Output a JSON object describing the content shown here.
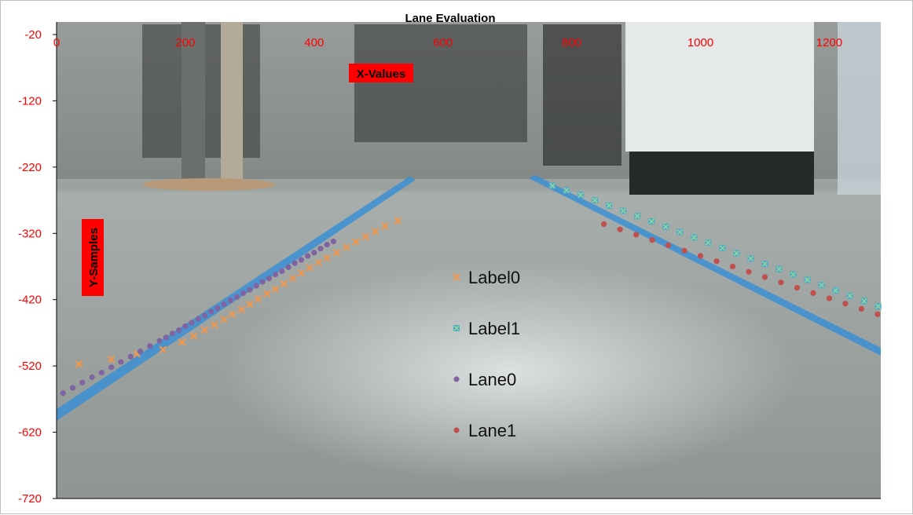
{
  "chart_data": {
    "type": "scatter",
    "title": "Lane Evaluation",
    "xlabel": "X-Values",
    "ylabel": "Y-Samples",
    "xlim": [
      0,
      1280
    ],
    "ylim": [
      -720,
      -20
    ],
    "x_ticks": [
      "0",
      "200",
      "400",
      "600",
      "800",
      "1000",
      "1200"
    ],
    "y_ticks": [
      "-20",
      "-120",
      "-220",
      "-320",
      "-420",
      "-520",
      "-620",
      "-720"
    ],
    "x_ticks_values": [
      0,
      200,
      400,
      600,
      800,
      1000,
      1200
    ],
    "y_ticks_values": [
      -20,
      -120,
      -220,
      -320,
      -420,
      -520,
      -620,
      -720
    ],
    "axis_label_color": "#ff0000",
    "axis_title_bg": "#ff0000",
    "background": "photo of an office floor with two blue tape lane markings",
    "grid": false,
    "legend_position": "center",
    "series": [
      {
        "name": "Label0",
        "marker": "x",
        "color": "#f79646",
        "x": [
          35,
          85,
          125,
          165,
          195,
          213,
          230,
          245,
          260,
          273,
          287,
          300,
          313,
          327,
          340,
          353,
          367,
          380,
          393,
          407,
          420,
          435,
          450,
          465,
          480,
          495,
          510,
          530
        ],
        "y": [
          -517,
          -510,
          -502,
          -495,
          -484,
          -475,
          -466,
          -458,
          -450,
          -442,
          -435,
          -427,
          -419,
          -411,
          -404,
          -396,
          -388,
          -380,
          -372,
          -364,
          -357,
          -349,
          -341,
          -333,
          -325,
          -317,
          -309,
          -301
        ]
      },
      {
        "name": "Label1",
        "marker": "square-x",
        "color": "#4bacc6",
        "x": [
          770,
          792,
          814,
          836,
          858,
          880,
          902,
          924,
          946,
          968,
          990,
          1012,
          1034,
          1056,
          1078,
          1100,
          1122,
          1144,
          1166,
          1188,
          1210,
          1232,
          1254,
          1276
        ],
        "y": [
          -248,
          -255,
          -262,
          -270,
          -278,
          -286,
          -294,
          -302,
          -310,
          -318,
          -326,
          -334,
          -342,
          -350,
          -358,
          -366,
          -374,
          -382,
          -390,
          -398,
          -406,
          -414,
          -422,
          -430
        ]
      },
      {
        "name": "Lane0",
        "marker": "circle",
        "color": "#8064a2",
        "x": [
          10,
          25,
          40,
          55,
          70,
          85,
          100,
          115,
          130,
          145,
          160,
          170,
          180,
          190,
          200,
          210,
          220,
          230,
          240,
          250,
          260,
          270,
          280,
          290,
          300,
          310,
          320,
          330,
          340,
          350,
          360,
          370,
          380,
          390,
          400,
          410,
          420,
          430
        ],
        "y": [
          -561,
          -553,
          -545,
          -537,
          -530,
          -522,
          -514,
          -506,
          -498,
          -490,
          -482,
          -477,
          -471,
          -466,
          -460,
          -455,
          -449,
          -444,
          -438,
          -433,
          -427,
          -421,
          -416,
          -410,
          -405,
          -399,
          -393,
          -388,
          -382,
          -377,
          -371,
          -365,
          -360,
          -354,
          -349,
          -343,
          -337,
          -332
        ]
      },
      {
        "name": "Lane1",
        "marker": "circle",
        "color": "#c0504d",
        "x": [
          850,
          875,
          900,
          925,
          950,
          975,
          1000,
          1025,
          1050,
          1075,
          1100,
          1125,
          1150,
          1175,
          1200,
          1225,
          1250,
          1275
        ],
        "y": [
          -306,
          -314,
          -322,
          -330,
          -338,
          -346,
          -354,
          -362,
          -370,
          -378,
          -386,
          -394,
          -402,
          -410,
          -418,
          -426,
          -434,
          -442
        ]
      }
    ]
  }
}
